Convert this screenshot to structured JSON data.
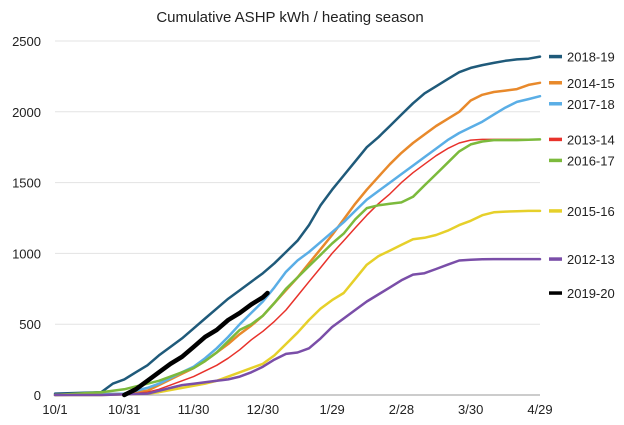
{
  "chart_data": {
    "type": "line",
    "title": "Cumulative ASHP kWh / heating season",
    "xlabel": "",
    "ylabel": "",
    "x_tick_labels": [
      "10/1",
      "10/31",
      "11/30",
      "12/30",
      "1/29",
      "2/28",
      "3/30",
      "4/29"
    ],
    "x_tick_days": [
      0,
      30,
      60,
      90,
      120,
      150,
      180,
      210
    ],
    "xlim": [
      0,
      210
    ],
    "ylim": [
      0,
      2500
    ],
    "y_ticks": [
      0,
      500,
      1000,
      1500,
      2000,
      2500
    ],
    "grid": "horizontal",
    "legend": "right",
    "series": [
      {
        "name": "2018-19",
        "color": "#1f5a7a",
        "width": 2.5,
        "x": [
          0,
          20,
          25,
          30,
          35,
          40,
          45,
          50,
          55,
          60,
          65,
          70,
          75,
          80,
          85,
          90,
          95,
          100,
          105,
          110,
          115,
          120,
          125,
          130,
          135,
          140,
          145,
          150,
          155,
          160,
          165,
          170,
          175,
          180,
          185,
          190,
          195,
          200,
          205,
          210
        ],
        "y": [
          10,
          20,
          80,
          110,
          160,
          210,
          280,
          340,
          400,
          470,
          540,
          610,
          680,
          740,
          800,
          860,
          930,
          1010,
          1090,
          1200,
          1340,
          1450,
          1550,
          1650,
          1750,
          1820,
          1900,
          1980,
          2060,
          2130,
          2180,
          2230,
          2280,
          2310,
          2330,
          2345,
          2360,
          2370,
          2375,
          2390
        ]
      },
      {
        "name": "2014-15",
        "color": "#e8892b",
        "width": 2.5,
        "x": [
          0,
          20,
          30,
          40,
          45,
          50,
          55,
          60,
          65,
          70,
          75,
          80,
          85,
          90,
          95,
          100,
          105,
          110,
          115,
          120,
          125,
          130,
          135,
          140,
          145,
          150,
          155,
          160,
          165,
          170,
          175,
          180,
          185,
          190,
          195,
          200,
          205,
          210
        ],
        "y": [
          0,
          5,
          10,
          30,
          70,
          110,
          150,
          190,
          240,
          300,
          360,
          430,
          490,
          560,
          650,
          740,
          830,
          930,
          1030,
          1130,
          1240,
          1350,
          1450,
          1540,
          1630,
          1710,
          1780,
          1840,
          1900,
          1950,
          2000,
          2080,
          2120,
          2140,
          2150,
          2160,
          2190,
          2205
        ]
      },
      {
        "name": "2017-18",
        "color": "#5aaee6",
        "width": 2.5,
        "x": [
          0,
          20,
          30,
          40,
          45,
          50,
          55,
          60,
          65,
          70,
          75,
          80,
          85,
          90,
          95,
          100,
          105,
          110,
          115,
          120,
          125,
          130,
          135,
          140,
          145,
          150,
          155,
          160,
          165,
          170,
          175,
          180,
          185,
          190,
          195,
          200,
          205,
          210
        ],
        "y": [
          0,
          5,
          10,
          50,
          80,
          120,
          160,
          200,
          260,
          330,
          410,
          500,
          580,
          660,
          760,
          870,
          950,
          1010,
          1080,
          1150,
          1220,
          1300,
          1380,
          1440,
          1500,
          1560,
          1620,
          1680,
          1740,
          1800,
          1850,
          1890,
          1930,
          1980,
          2030,
          2070,
          2090,
          2110
        ]
      },
      {
        "name": "2013-14",
        "color": "#e8322b",
        "width": 1.5,
        "x": [
          0,
          20,
          30,
          40,
          45,
          50,
          55,
          60,
          65,
          70,
          75,
          80,
          85,
          90,
          95,
          100,
          105,
          110,
          115,
          120,
          125,
          130,
          135,
          140,
          145,
          150,
          155,
          160,
          165,
          170,
          175,
          180,
          185,
          190,
          195,
          200,
          205,
          210
        ],
        "y": [
          0,
          0,
          5,
          20,
          40,
          70,
          100,
          130,
          170,
          210,
          260,
          320,
          390,
          450,
          520,
          600,
          700,
          800,
          900,
          1000,
          1090,
          1180,
          1270,
          1350,
          1420,
          1500,
          1570,
          1630,
          1690,
          1740,
          1780,
          1800,
          1805,
          1805,
          1805,
          1805,
          1805,
          1805
        ]
      },
      {
        "name": "2016-17",
        "color": "#7cba3c",
        "width": 2.5,
        "x": [
          0,
          20,
          30,
          35,
          40,
          45,
          50,
          55,
          60,
          65,
          70,
          75,
          80,
          85,
          90,
          95,
          100,
          105,
          110,
          115,
          120,
          125,
          130,
          135,
          140,
          145,
          150,
          155,
          160,
          165,
          170,
          175,
          180,
          185,
          190,
          195,
          200,
          205,
          210
        ],
        "y": [
          0,
          20,
          40,
          60,
          80,
          100,
          130,
          160,
          190,
          240,
          300,
          380,
          460,
          500,
          560,
          650,
          750,
          830,
          910,
          990,
          1070,
          1140,
          1240,
          1320,
          1340,
          1350,
          1360,
          1400,
          1480,
          1560,
          1640,
          1720,
          1770,
          1790,
          1800,
          1800,
          1800,
          1802,
          1805
        ]
      },
      {
        "name": "2015-16",
        "color": "#e6d02a",
        "width": 2.5,
        "x": [
          0,
          20,
          40,
          45,
          50,
          55,
          60,
          65,
          70,
          75,
          80,
          85,
          90,
          95,
          100,
          105,
          110,
          115,
          120,
          125,
          130,
          135,
          140,
          145,
          150,
          155,
          160,
          165,
          170,
          175,
          180,
          185,
          190,
          195,
          200,
          205,
          210
        ],
        "y": [
          0,
          0,
          10,
          20,
          35,
          50,
          65,
          80,
          100,
          130,
          160,
          190,
          220,
          280,
          360,
          440,
          530,
          610,
          670,
          720,
          820,
          920,
          980,
          1020,
          1060,
          1100,
          1110,
          1130,
          1160,
          1200,
          1230,
          1270,
          1290,
          1295,
          1298,
          1300,
          1300
        ]
      },
      {
        "name": "2012-13",
        "color": "#7a4ea8",
        "width": 2.5,
        "x": [
          0,
          20,
          40,
          45,
          50,
          55,
          60,
          65,
          70,
          75,
          80,
          85,
          90,
          95,
          100,
          105,
          110,
          115,
          120,
          125,
          130,
          135,
          140,
          145,
          150,
          155,
          160,
          165,
          170,
          175,
          180,
          185,
          190,
          195,
          200,
          205,
          210
        ],
        "y": [
          0,
          0,
          10,
          30,
          50,
          70,
          80,
          90,
          100,
          110,
          130,
          160,
          200,
          250,
          290,
          300,
          330,
          400,
          480,
          540,
          600,
          660,
          710,
          760,
          810,
          850,
          860,
          890,
          920,
          950,
          955,
          958,
          960,
          960,
          960,
          960,
          960
        ]
      },
      {
        "name": "2019-20",
        "color": "#000000",
        "width": 4.5,
        "x": [
          30,
          35,
          40,
          45,
          50,
          55,
          60,
          65,
          70,
          75,
          80,
          85,
          90,
          92
        ],
        "y": [
          0,
          40,
          100,
          160,
          220,
          270,
          340,
          410,
          460,
          530,
          580,
          640,
          690,
          720
        ]
      }
    ]
  }
}
